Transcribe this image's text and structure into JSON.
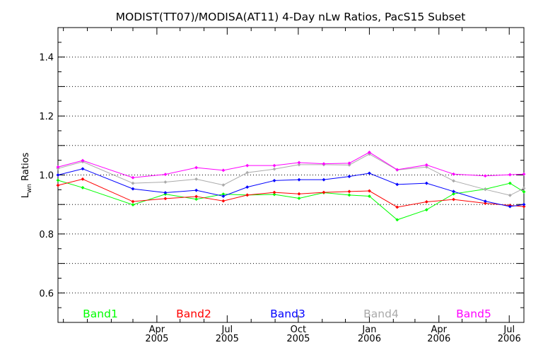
{
  "chart_data": {
    "type": "line",
    "title": "MODIST(TT07)/MODISA(AT11) 4-Day nLw Ratios, PacS15 Subset",
    "ylabel": {
      "main": "L",
      "sub": "wn",
      "rest": " Ratios"
    },
    "xlabel": "",
    "ylim": [
      0.5,
      1.5
    ],
    "xlim": [
      "2004-11-24",
      "2006-07-20"
    ],
    "grid": "horizontal-dotted",
    "legend_position": "bottom",
    "y_ticks": [
      {
        "value": 0.6,
        "label": "0.6"
      },
      {
        "value": 0.8,
        "label": "0.8"
      },
      {
        "value": 1.0,
        "label": "1.0"
      },
      {
        "value": 1.2,
        "label": "1.2"
      },
      {
        "value": 1.4,
        "label": "1.4"
      }
    ],
    "x_ticks": [
      {
        "date": "2005-04-01",
        "month": "Apr",
        "year": "2005"
      },
      {
        "date": "2005-07-01",
        "month": "Jul",
        "year": "2005"
      },
      {
        "date": "2005-10-01",
        "month": "Oct",
        "year": "2005"
      },
      {
        "date": "2006-01-01",
        "month": "Jan",
        "year": "2006"
      },
      {
        "date": "2006-04-01",
        "month": "Apr",
        "year": "2006"
      },
      {
        "date": "2006-07-01",
        "month": "Jul",
        "year": "2006"
      }
    ],
    "x": [
      "2004-11-24",
      "2004-12-26",
      "2005-03-01",
      "2005-04-12",
      "2005-05-22",
      "2005-06-26",
      "2005-07-27",
      "2005-08-31",
      "2005-10-02",
      "2005-11-03",
      "2005-12-06",
      "2006-01-01",
      "2006-02-06",
      "2006-03-16",
      "2006-04-20",
      "2006-05-31",
      "2006-07-02",
      "2006-07-20"
    ],
    "series": [
      {
        "name": "Band1",
        "color": "#00ff00",
        "values": [
          0.982,
          0.957,
          0.899,
          0.935,
          0.918,
          0.935,
          0.932,
          0.934,
          0.921,
          0.94,
          0.932,
          0.928,
          0.848,
          0.882,
          0.936,
          0.952,
          0.972,
          0.943
        ]
      },
      {
        "name": "Band2",
        "color": "#ff0000",
        "values": [
          0.965,
          0.986,
          0.91,
          0.92,
          0.927,
          0.912,
          0.932,
          0.941,
          0.936,
          0.941,
          0.944,
          0.946,
          0.891,
          0.909,
          0.917,
          0.904,
          0.897,
          0.893
        ]
      },
      {
        "name": "Band3",
        "color": "#0000ff",
        "values": [
          1.0,
          1.021,
          0.953,
          0.94,
          0.948,
          0.928,
          0.959,
          0.981,
          0.984,
          0.984,
          0.995,
          1.006,
          0.968,
          0.972,
          0.944,
          0.911,
          0.893,
          0.9
        ]
      },
      {
        "name": "Band4",
        "color": "#aaaaaa",
        "values": [
          1.022,
          1.045,
          0.972,
          0.976,
          0.986,
          0.966,
          1.008,
          1.02,
          1.035,
          1.035,
          1.034,
          1.071,
          1.017,
          1.027,
          0.98,
          0.951,
          0.931,
          0.955
        ]
      },
      {
        "name": "Band5",
        "color": "#ff00ff",
        "values": [
          1.027,
          1.049,
          0.991,
          1.002,
          1.025,
          1.016,
          1.032,
          1.032,
          1.042,
          1.038,
          1.04,
          1.077,
          1.018,
          1.034,
          1.003,
          0.997,
          1.001,
          1.003
        ]
      }
    ]
  }
}
